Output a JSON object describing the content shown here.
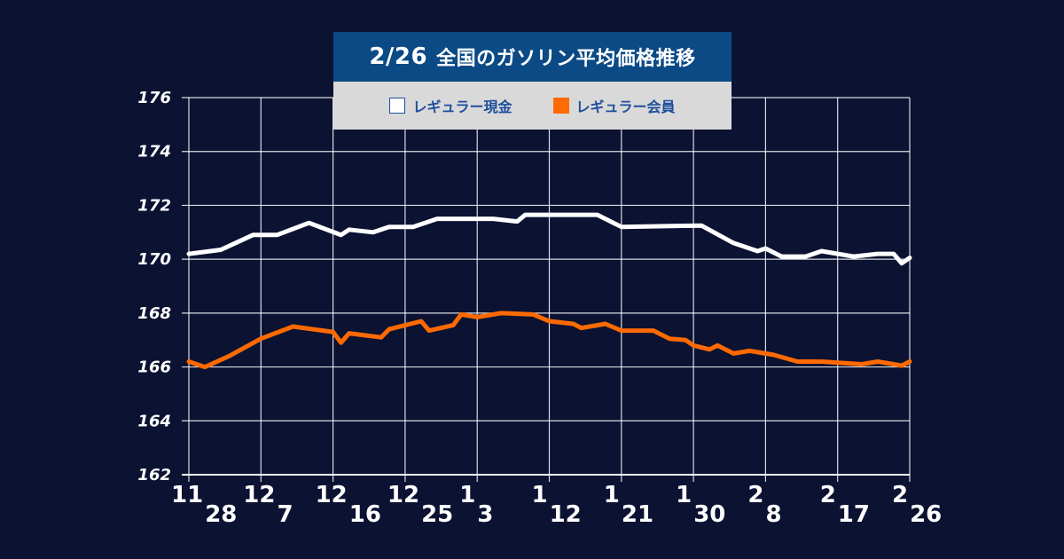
{
  "header": {
    "date": "2/26",
    "title": "全国のガソリン平均価格推移"
  },
  "colors": {
    "background": "#0b1232",
    "grid": "#ffffff",
    "series_cash": "#ffffff",
    "series_member": "#ff6a00",
    "title_bg": "#0b4a85",
    "legend_bg": "#d9d9d9"
  },
  "chart_data": {
    "type": "line",
    "title": "2/26 全国のガソリン平均価格推移",
    "xlabel": "",
    "ylabel": "",
    "ylim": [
      162,
      176
    ],
    "yticks": [
      176,
      174,
      172,
      170,
      168,
      166,
      164,
      162
    ],
    "x_range": [
      0,
      90
    ],
    "grid": true,
    "legend": "top-center",
    "xticks": [
      {
        "x": 0,
        "main": "11",
        "sub": "28"
      },
      {
        "x": 9,
        "main": "12",
        "sub": "7"
      },
      {
        "x": 18,
        "main": "12",
        "sub": "16"
      },
      {
        "x": 27,
        "main": "12",
        "sub": "25"
      },
      {
        "x": 36,
        "main": "1",
        "sub": "3"
      },
      {
        "x": 45,
        "main": "1",
        "sub": "12"
      },
      {
        "x": 54,
        "main": "1",
        "sub": "21"
      },
      {
        "x": 63,
        "main": "1",
        "sub": "30"
      },
      {
        "x": 72,
        "main": "2",
        "sub": "8"
      },
      {
        "x": 81,
        "main": "2",
        "sub": "17"
      },
      {
        "x": 90,
        "main": "2",
        "sub": "26"
      }
    ],
    "series": [
      {
        "name": "レギュラー現金",
        "points": [
          [
            0,
            170.2
          ],
          [
            4,
            170.35
          ],
          [
            8,
            170.9
          ],
          [
            11,
            170.9
          ],
          [
            15,
            171.35
          ],
          [
            19,
            170.9
          ],
          [
            20,
            171.1
          ],
          [
            23,
            171.0
          ],
          [
            25,
            171.2
          ],
          [
            28,
            171.2
          ],
          [
            31,
            171.5
          ],
          [
            38,
            171.5
          ],
          [
            41,
            171.4
          ],
          [
            42,
            171.65
          ],
          [
            51,
            171.65
          ],
          [
            54,
            171.2
          ],
          [
            64,
            171.25
          ],
          [
            68,
            170.6
          ],
          [
            71,
            170.3
          ],
          [
            72,
            170.4
          ],
          [
            74,
            170.1
          ],
          [
            77,
            170.1
          ],
          [
            79,
            170.3
          ],
          [
            83,
            170.1
          ],
          [
            86,
            170.2
          ],
          [
            88,
            170.2
          ],
          [
            89,
            169.85
          ],
          [
            90,
            170.05
          ]
        ],
        "color": "#ffffff"
      },
      {
        "name": "レギュラー会員",
        "points": [
          [
            0,
            166.2
          ],
          [
            2,
            166.0
          ],
          [
            5,
            166.4
          ],
          [
            9,
            167.05
          ],
          [
            13,
            167.5
          ],
          [
            18,
            167.3
          ],
          [
            19,
            166.9
          ],
          [
            20,
            167.25
          ],
          [
            24,
            167.1
          ],
          [
            25,
            167.4
          ],
          [
            29,
            167.7
          ],
          [
            30,
            167.35
          ],
          [
            33,
            167.55
          ],
          [
            34,
            167.95
          ],
          [
            36,
            167.85
          ],
          [
            39,
            168.0
          ],
          [
            43,
            167.95
          ],
          [
            45,
            167.7
          ],
          [
            48,
            167.6
          ],
          [
            49,
            167.45
          ],
          [
            52,
            167.6
          ],
          [
            54,
            167.35
          ],
          [
            58,
            167.35
          ],
          [
            60,
            167.05
          ],
          [
            62,
            167.0
          ],
          [
            63,
            166.8
          ],
          [
            65,
            166.65
          ],
          [
            66,
            166.8
          ],
          [
            68,
            166.5
          ],
          [
            70,
            166.6
          ],
          [
            73,
            166.45
          ],
          [
            76,
            166.2
          ],
          [
            79,
            166.2
          ],
          [
            84,
            166.1
          ],
          [
            86,
            166.2
          ],
          [
            88,
            166.1
          ],
          [
            89,
            166.05
          ],
          [
            90,
            166.2
          ]
        ],
        "color": "#ff6a00"
      }
    ]
  }
}
